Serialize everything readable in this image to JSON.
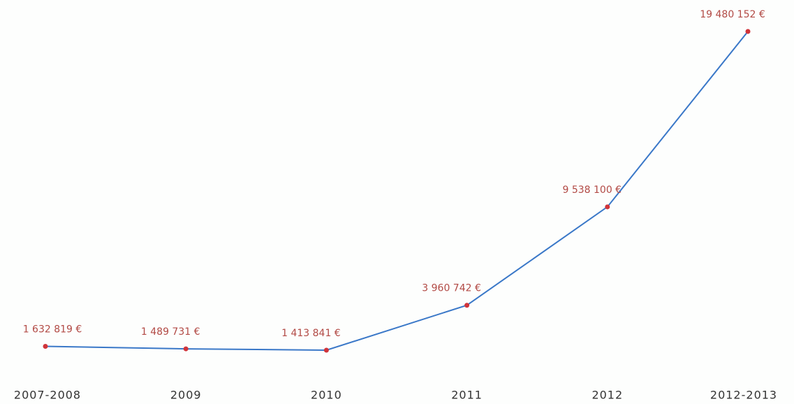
{
  "chart_data": {
    "type": "line",
    "categories": [
      "2007-2008",
      "2009",
      "2010",
      "2011",
      "2012",
      "2012-2013"
    ],
    "series": [
      {
        "color": "#3a78c8",
        "values": [
          1632819,
          1489731,
          1413841,
          3960742,
          9538100,
          19480152
        ],
        "value_labels": [
          "1 632 819 €",
          "1 489 731 €",
          "1 413 841 €",
          "3 960 742 €",
          "9 538 100 €",
          "19 480 152 €"
        ]
      }
    ],
    "marker_color": "#d0343a"
  }
}
